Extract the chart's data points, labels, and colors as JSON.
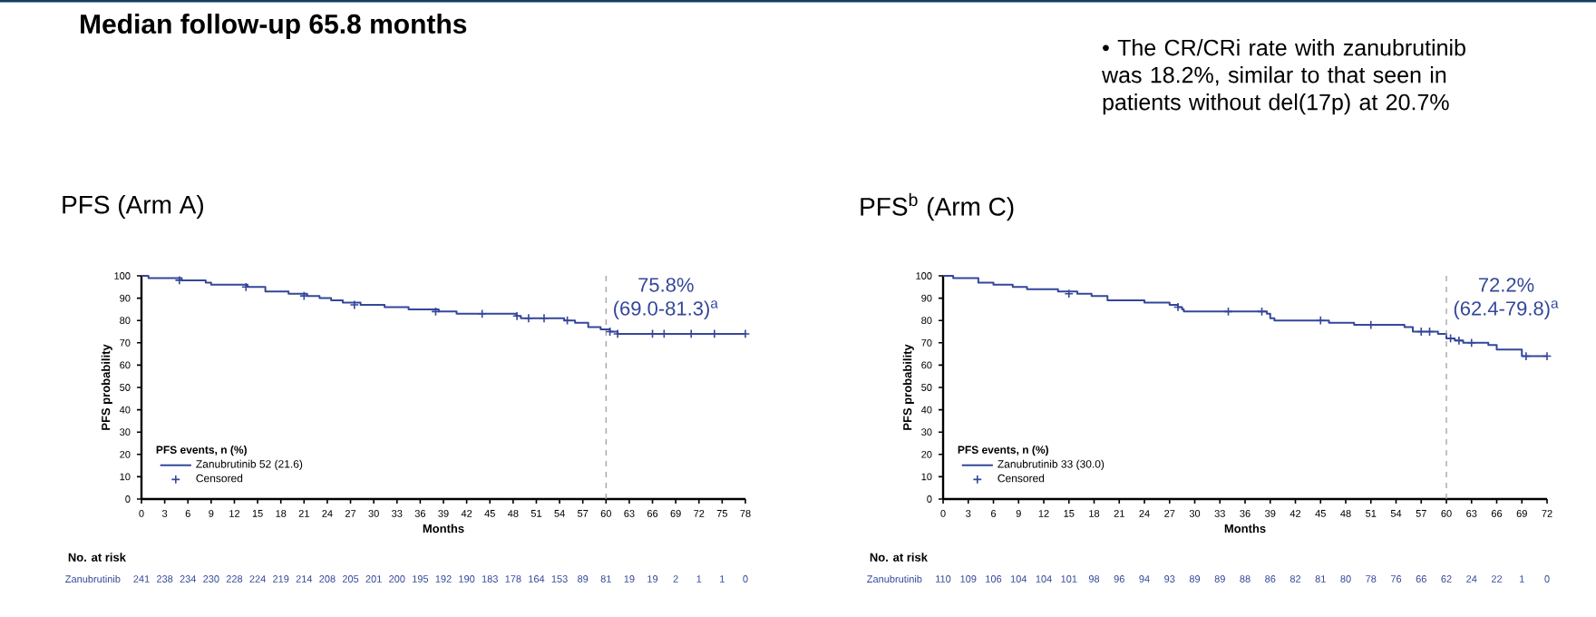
{
  "chart_data": [
    {
      "type": "other",
      "title": "Median follow-up 65.8 months",
      "annotations": [
        "• The CR/CRi rate with zanubrutinib was 18.2%, similar to that seen in patients without del(17p) at 20.7%"
      ]
    },
    {
      "type": "step",
      "title": "PFS (Arm A)",
      "xlabel": "Months",
      "ylabel": "PFS probability",
      "legend_title": "PFS events, n (%)",
      "legend": "bottom left",
      "xlim": [
        0,
        78
      ],
      "xticks": [
        0,
        3,
        6,
        9,
        12,
        15,
        18,
        21,
        24,
        27,
        30,
        33,
        36,
        39,
        42,
        45,
        48,
        51,
        54,
        57,
        60,
        63,
        66,
        69,
        72,
        75,
        78
      ],
      "ylim": [
        0,
        100
      ],
      "yticks": [
        0,
        10,
        20,
        30,
        40,
        50,
        60,
        70,
        80,
        90,
        100
      ],
      "series": [
        {
          "name": "Zanubrutinib 52 (21.6)",
          "color": "#34479a",
          "marker": "none",
          "x": [
            0,
            0.9,
            5.2,
            8.3,
            9,
            13.7,
            16,
            19,
            21.4,
            23,
            24.5,
            26,
            28.3,
            31.4,
            34.5,
            38.4,
            40.7,
            48.4,
            49,
            51.5,
            54.6,
            56,
            57.7,
            59.3,
            60,
            60.5,
            61.5,
            78
          ],
          "values": [
            100,
            99,
            98,
            97,
            96,
            95,
            93,
            92,
            91,
            90,
            89,
            88,
            87,
            86,
            85,
            84,
            83,
            82,
            81,
            81,
            80,
            79,
            77,
            76,
            76,
            75,
            74,
            74
          ]
        },
        {
          "name": "Censored",
          "type": "scatter",
          "color": "#34479a",
          "marker": "cross",
          "x": [
            4.9,
            13.5,
            21,
            27.5,
            38,
            44,
            48.5,
            50,
            52,
            55,
            60.5,
            61.5,
            66,
            67.5,
            71,
            74,
            78
          ],
          "values": [
            98,
            95,
            91,
            87,
            84,
            83,
            82,
            81,
            81,
            80,
            75,
            74,
            74,
            74,
            74,
            74,
            74
          ]
        }
      ],
      "ref_lines": [
        {
          "axis": "x",
          "value": 60,
          "label": "75.8% (69.0-81.3)$^{a}$",
          "color": "#999999",
          "line_style": "dashed"
        }
      ],
      "annotations": [
        "No. at risk",
        "Zanubrutinib",
        "241",
        "238",
        "234",
        "230",
        "228",
        "224",
        "219",
        "214",
        "208",
        "205",
        "201",
        "200",
        "195",
        "192",
        "190",
        "183",
        "178",
        "164",
        "153",
        "89",
        "81",
        "19",
        "19",
        "2",
        "1",
        "1",
        "0"
      ]
    },
    {
      "type": "step",
      "title": "PFS$^{b}$ (Arm C)",
      "xlabel": "Months",
      "ylabel": "PFS probability",
      "legend_title": "PFS events, n (%)",
      "legend": "bottom left",
      "xlim": [
        0,
        72
      ],
      "xticks": [
        0,
        3,
        6,
        9,
        12,
        15,
        18,
        21,
        24,
        27,
        30,
        33,
        36,
        39,
        42,
        45,
        48,
        51,
        54,
        57,
        60,
        63,
        66,
        69,
        72
      ],
      "ylim": [
        0,
        100
      ],
      "yticks": [
        0,
        10,
        20,
        30,
        40,
        50,
        60,
        70,
        80,
        90,
        100
      ],
      "series": [
        {
          "name": "Zanubrutinib 33 (30.0)",
          "color": "#34479a",
          "marker": "none",
          "x": [
            0,
            1.2,
            4.2,
            6,
            8.3,
            10,
            13.7,
            16,
            17.7,
            19.6,
            24,
            27,
            28,
            28.5,
            28.7,
            38.6,
            39,
            39.5,
            46,
            49,
            55,
            56,
            59,
            60,
            61,
            62,
            65,
            66,
            69,
            72
          ],
          "values": [
            100,
            99,
            97,
            96,
            95,
            94,
            93,
            92,
            91,
            89,
            88,
            87,
            86,
            85,
            84,
            83,
            81,
            80,
            79,
            78,
            77,
            75,
            74,
            72,
            71,
            70,
            69,
            67,
            64,
            64
          ]
        },
        {
          "name": "Censored",
          "type": "scatter",
          "color": "#34479a",
          "marker": "cross",
          "x": [
            15,
            28,
            34,
            38,
            45,
            51,
            57,
            58,
            60.5,
            61.5,
            63,
            69.5,
            72
          ],
          "values": [
            92,
            86,
            84,
            84,
            80,
            78,
            75,
            75,
            72,
            71,
            70,
            64,
            64
          ]
        }
      ],
      "ref_lines": [
        {
          "axis": "x",
          "value": 60,
          "label": "72.2% (62.4-79.8)$^{a}$",
          "color": "#999999",
          "line_style": "dashed"
        }
      ],
      "annotations": [
        "No. at risk",
        "Zanubrutinib",
        "110",
        "109",
        "106",
        "104",
        "104",
        "101",
        "98",
        "96",
        "94",
        "93",
        "89",
        "89",
        "88",
        "86",
        "82",
        "81",
        "80",
        "78",
        "76",
        "66",
        "62",
        "24",
        "22",
        "1",
        "0"
      ]
    }
  ]
}
